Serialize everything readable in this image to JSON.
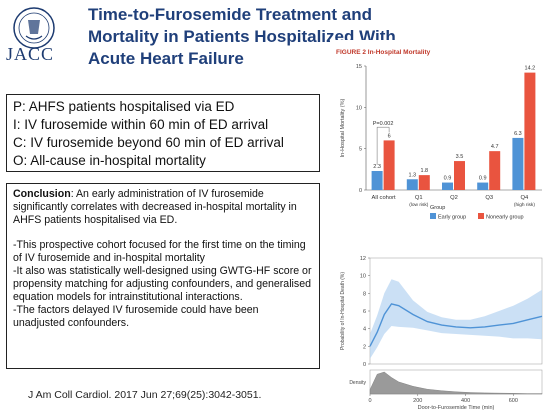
{
  "header": {
    "logo_text": "JACC",
    "title_lines": [
      "Time-to-Furosemide Treatment and",
      "Mortality in Patients Hospitalized With",
      "Acute Heart Failure"
    ]
  },
  "pico": {
    "p": "P: AHFS patients hospitalised via ED",
    "i": "I: IV furosemide within 60 min of ED arrival",
    "c": "C: IV furosemide beyond 60 min of ED arrival",
    "o": "O: All-cause in-hospital mortality"
  },
  "conclusion": {
    "label": "Conclusion",
    "text": ": An early administration of IV furosemide significantly correlates with decreased in-hospital mortality in AHFS patients hospitalised via ED.",
    "bullet1": "-This prospective cohort focused for the first time on the timing of IV furosemide and in-hospital mortality",
    "bullet2": "-It also was statistically well-designed using GWTG-HF score or propensity matching for adjusting confounders, and generalised equation models for intrainstitutional interactions.",
    "bullet3": "-The factors delayed IV furosemide could have been unadjusted confounders."
  },
  "reference": "J Am Coll Cardiol. 2017 Jun 27;69(25):3042-3051.",
  "chart_data": [
    {
      "type": "bar",
      "title": "FIGURE 2 In-Hospital Mortality",
      "ylabel": "In-Hospital Mortality (%)",
      "ylim": [
        0,
        15
      ],
      "categories": [
        "All cohort",
        "Q1\n(low risk)",
        "Q2",
        "Q3",
        "Q4\n(high risk)"
      ],
      "annotation": "P=0.002",
      "legend_title": "Group",
      "series": [
        {
          "name": "Early group",
          "color": "#4f93d6",
          "values": [
            2.3,
            1.3,
            0.9,
            0.9,
            6.3
          ]
        },
        {
          "name": "Nonearly group",
          "color": "#e9543f",
          "values": [
            6.0,
            1.8,
            3.5,
            4.7,
            14.2
          ]
        }
      ],
      "value_labels": {
        "Early group": [
          "2.3",
          "1.3",
          "0.9",
          "0.9",
          "6.3"
        ],
        "Nonearly group": [
          "6",
          "1.8",
          "3.5",
          "4.7",
          "14.2"
        ]
      }
    },
    {
      "type": "line",
      "ylabel": "Probability of In-Hospital Death (%)",
      "xlabel": "Door-to-Furosemide Time (min)",
      "density_label": "Density",
      "xlim": [
        0,
        720
      ],
      "ylim": [
        0,
        12
      ],
      "xticks": [
        0,
        200,
        400,
        600
      ],
      "yticks": [
        0,
        2,
        4,
        6,
        8,
        10,
        12
      ],
      "x": [
        0,
        30,
        60,
        90,
        120,
        180,
        240,
        300,
        360,
        420,
        480,
        540,
        600,
        660,
        720
      ],
      "y": [
        2.0,
        3.6,
        5.6,
        6.8,
        6.6,
        5.6,
        4.8,
        4.4,
        4.2,
        4.1,
        4.2,
        4.4,
        4.6,
        5.0,
        5.4
      ],
      "upper": [
        3.4,
        5.5,
        8.0,
        9.6,
        9.3,
        7.2,
        5.9,
        5.3,
        5.0,
        5.0,
        5.4,
        6.0,
        6.6,
        7.4,
        8.4
      ],
      "lower": [
        0.6,
        1.9,
        3.4,
        4.3,
        4.2,
        4.1,
        3.8,
        3.5,
        3.4,
        3.3,
        3.2,
        3.1,
        2.9,
        2.9,
        2.8
      ],
      "density": [
        0.2,
        0.9,
        1.0,
        0.75,
        0.55,
        0.35,
        0.22,
        0.15,
        0.1,
        0.07,
        0.05,
        0.04,
        0.03,
        0.02,
        0.02
      ],
      "color": "#4f93d6",
      "band_color": "#b9d6f1"
    }
  ]
}
